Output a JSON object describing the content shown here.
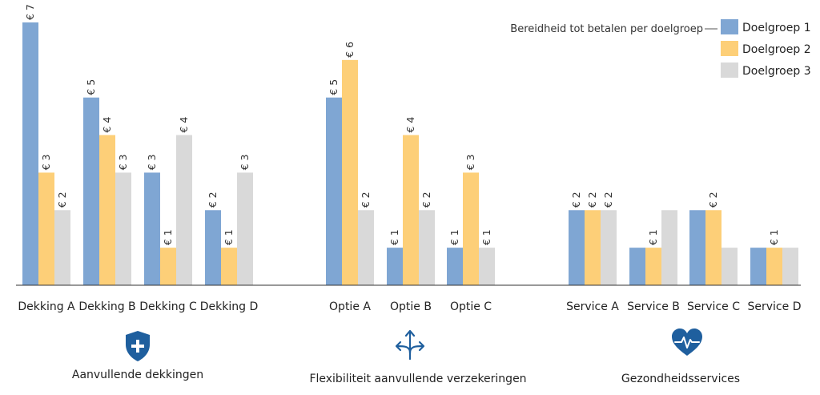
{
  "chart_data": {
    "type": "bar",
    "legend_title": "Bereidheid tot betalen per doelgroep",
    "legend_placement": "top-right",
    "grid": false,
    "categories": [
      "Dekking A",
      "Dekking B",
      "Dekking C",
      "Dekking D",
      "Optie A",
      "Optie B",
      "Optie C",
      "Service A",
      "Service B",
      "Service C",
      "Service D"
    ],
    "series": [
      {
        "name": "Doelgroep 1",
        "color": "#7fa6d3",
        "values": [
          7,
          5,
          3,
          2,
          5,
          1,
          1,
          2,
          1,
          2,
          1
        ]
      },
      {
        "name": "Doelgroep 2",
        "color": "#fdcf78",
        "values": [
          3,
          4,
          1,
          1,
          6,
          4,
          3,
          2,
          1,
          2,
          1
        ]
      },
      {
        "name": "Doelgroep 3",
        "color": "#d9d9d9",
        "values": [
          2,
          3,
          4,
          3,
          2,
          2,
          1,
          2,
          2,
          1,
          1
        ]
      }
    ],
    "value_labels": [
      [
        "€ 7",
        "€ 3",
        "€ 2"
      ],
      [
        "€ 5",
        "€ 4",
        "€ 3"
      ],
      [
        "€ 3",
        "€ 1",
        "€ 4"
      ],
      [
        "€ 2",
        "€ 1",
        "€ 3"
      ],
      [
        "€ 5",
        "€ 6",
        "€ 2"
      ],
      [
        "€ 1",
        "€ 4",
        "€ 2"
      ],
      [
        "€ 1",
        "€ 3",
        "€ 1"
      ],
      [
        "€ 2",
        "€ 2",
        "€ 2"
      ],
      [
        null,
        "€ 1",
        null
      ],
      [
        null,
        "€ 2",
        null
      ],
      [
        null,
        "€ 1",
        null
      ]
    ],
    "ylim": [
      0,
      7.2
    ],
    "groups": [
      {
        "label": "Aanvullende dekkingen",
        "icon": "shield-plus-icon",
        "categories": [
          0,
          1,
          2,
          3
        ]
      },
      {
        "label": "Flexibiliteit aanvullende verzekeringen",
        "icon": "branching-arrows-icon",
        "categories": [
          4,
          5,
          6
        ]
      },
      {
        "label": "Gezondheidsservices",
        "icon": "heart-pulse-icon",
        "categories": [
          7,
          8,
          9,
          10
        ]
      }
    ]
  },
  "colors": {
    "accent": "#1f5f9e",
    "axis": "#333333"
  }
}
